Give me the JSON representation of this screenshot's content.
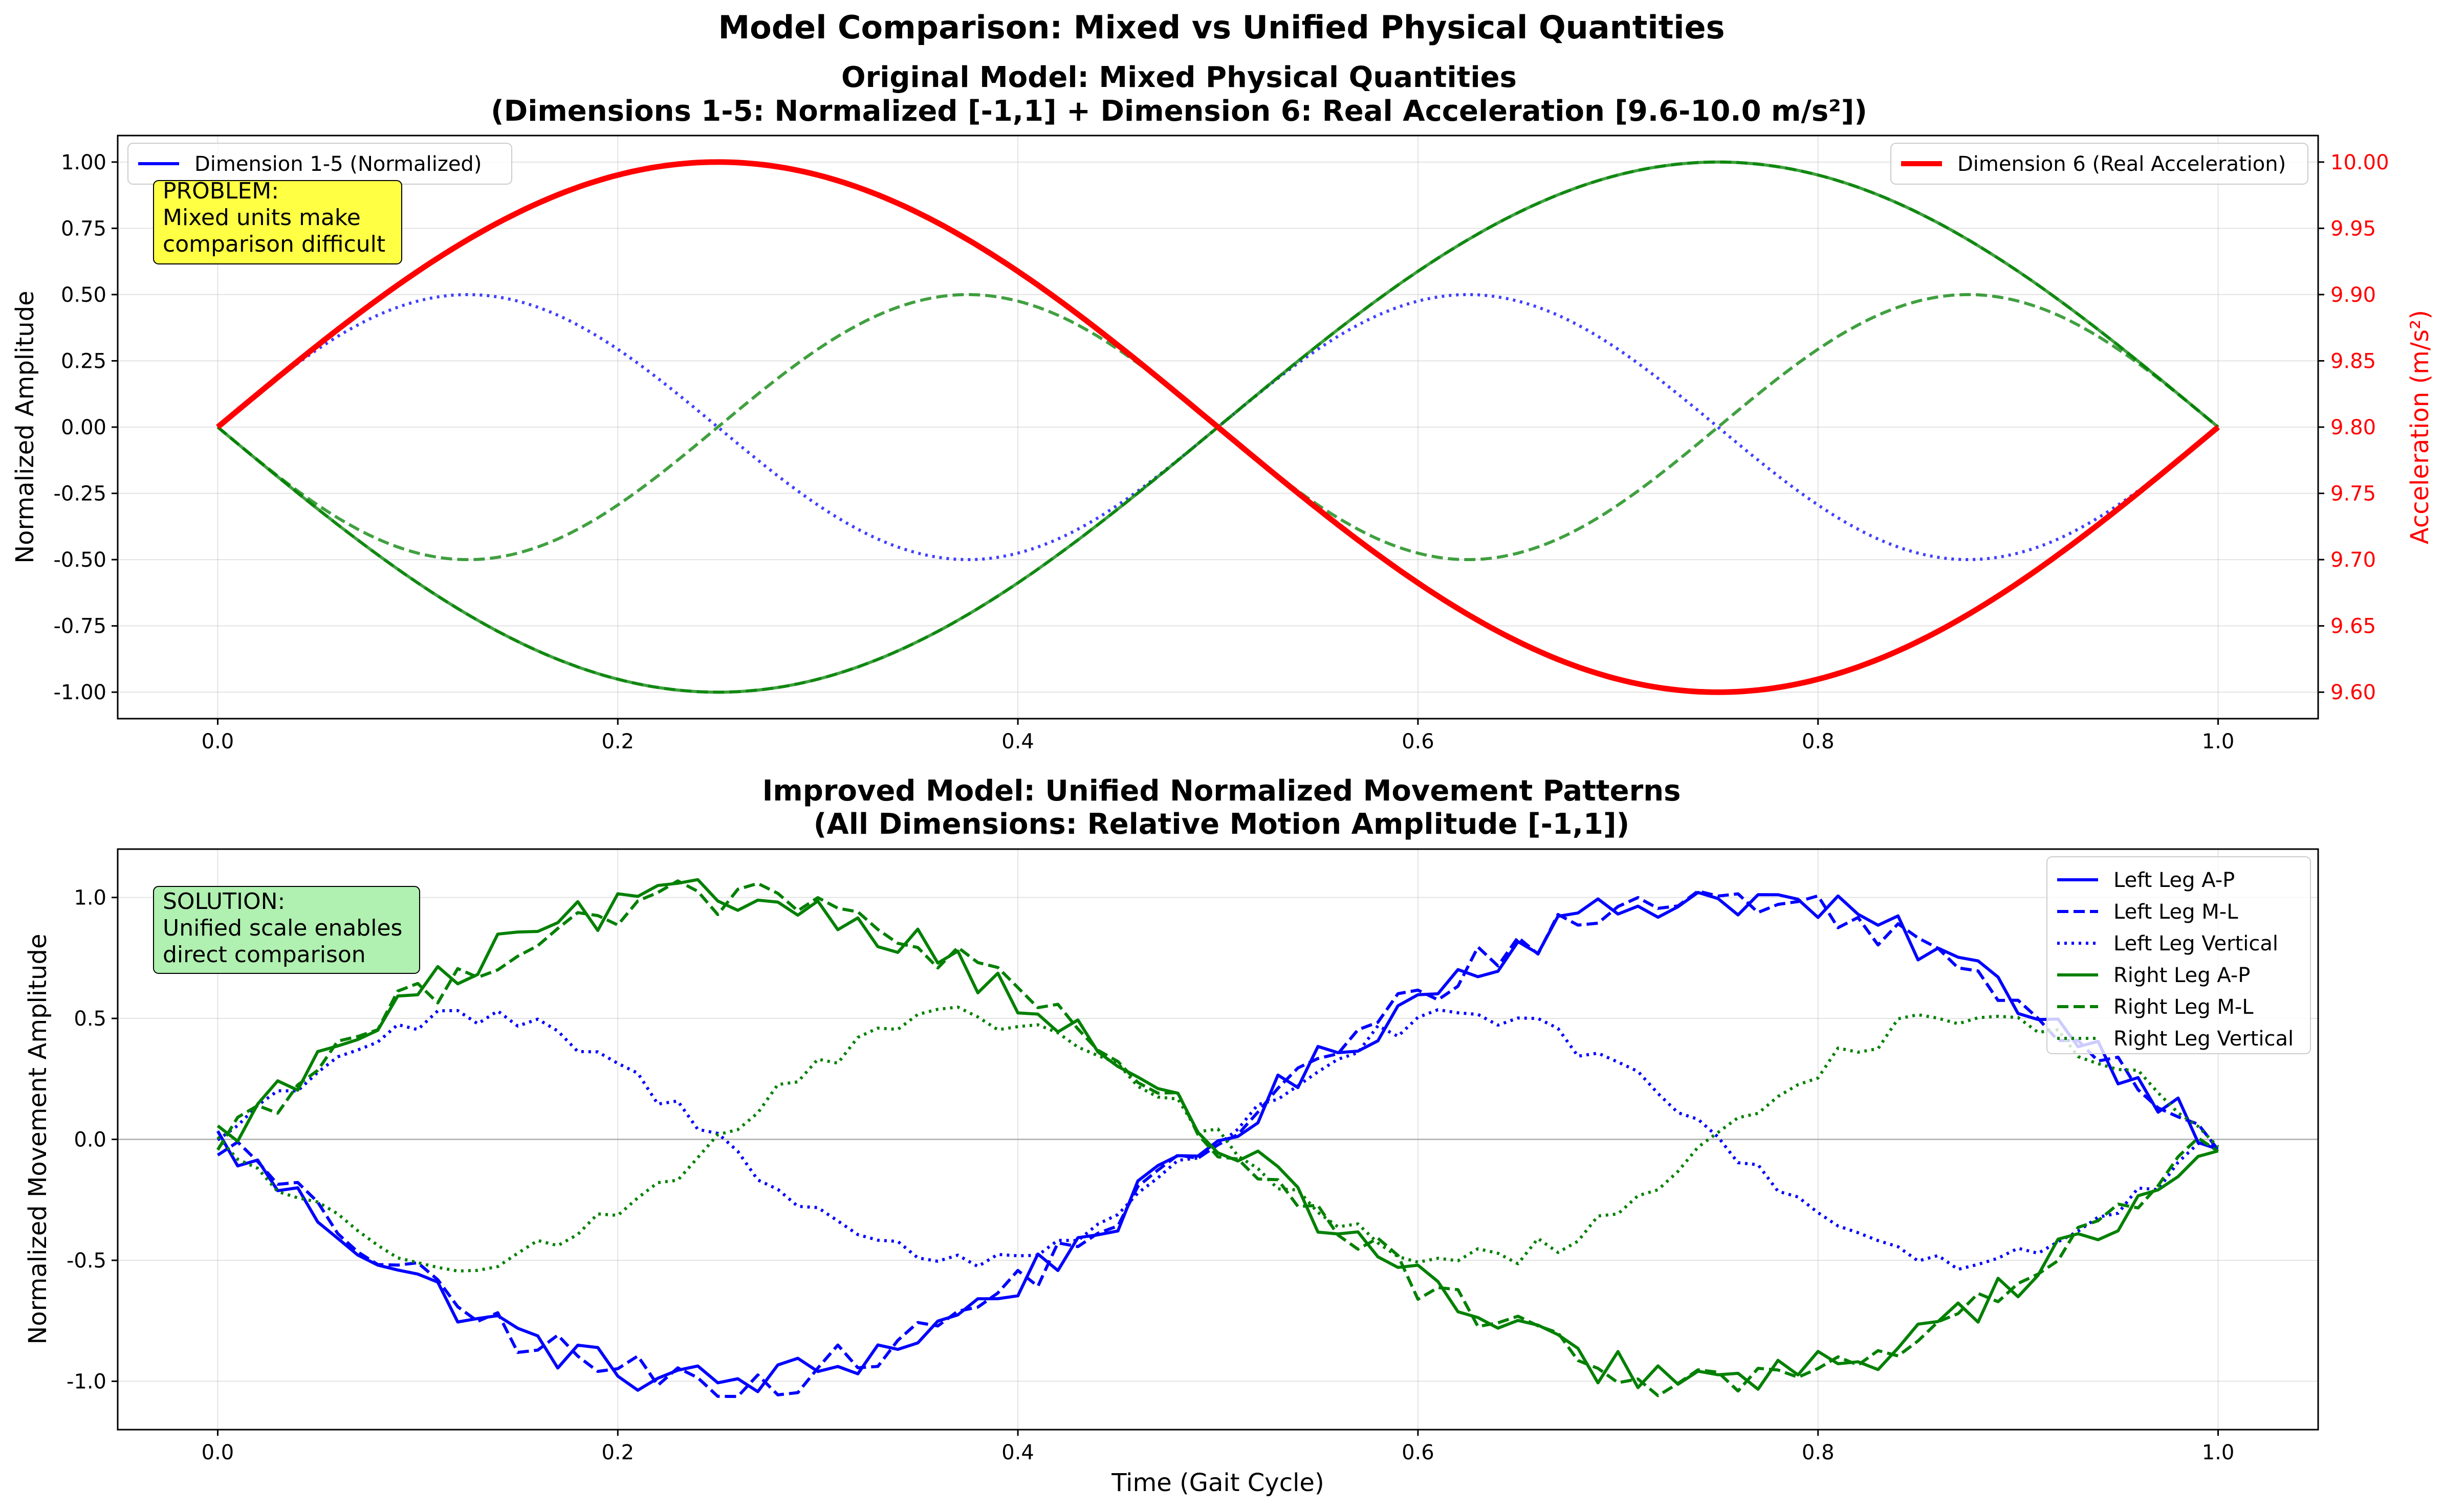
{
  "figure": {
    "suptitle": "Model Comparison: Mixed vs Unified Physical Quantities"
  },
  "chart_data": [
    {
      "type": "line",
      "title": "Original Model: Mixed Physical Quantities",
      "subtitle": "(Dimensions 1-5: Normalized [-1,1] + Dimension 6: Real Acceleration [9.6-10.0 m/s²])",
      "xlabel": "",
      "ylabel": "Normalized Amplitude",
      "y2label": "Acceleration (m/s²)",
      "xlim": [
        -0.05,
        1.05
      ],
      "ylim": [
        -1.1,
        1.1
      ],
      "y2lim": [
        9.58,
        10.02
      ],
      "xticks": [
        "0.0",
        "0.2",
        "0.4",
        "0.6",
        "0.8",
        "1.0"
      ],
      "yticks": [
        "-1.00",
        "-0.75",
        "-0.50",
        "-0.25",
        "0.00",
        "0.25",
        "0.50",
        "0.75",
        "1.00"
      ],
      "y2ticks": [
        "9.60",
        "9.65",
        "9.70",
        "9.75",
        "9.80",
        "9.85",
        "9.90",
        "9.95",
        "10.00"
      ],
      "grid": true,
      "series": [
        {
          "name": "Dimension 1-5 (Normalized)",
          "axis": "left",
          "color": "#0000ff",
          "style": "solid",
          "function": "sin(2*pi*t)",
          "amplitude": 1.0
        },
        {
          "name": "",
          "axis": "left",
          "color": "#0000ff",
          "style": "dotted",
          "function": "sin(4*pi*t)",
          "amplitude": 0.5
        },
        {
          "name": "",
          "axis": "left",
          "color": "#008000",
          "style": "dashed",
          "function": "-sin(2*pi*t)",
          "amplitude": 1.0
        },
        {
          "name": "",
          "axis": "left",
          "color": "#008000",
          "style": "dashed",
          "function": "-sin(4*pi*t)",
          "amplitude": 0.5
        },
        {
          "name": "",
          "axis": "left",
          "color": "#008000",
          "style": "solid",
          "function": "-sin(2*pi*t)",
          "amplitude": 1.0
        },
        {
          "name": "Dimension 6 (Real Acceleration)",
          "axis": "right",
          "color": "#ff0000",
          "style": "solid",
          "function": "9.8 + 0.2*sin(2*pi*t)",
          "amplitude": 0.2
        }
      ],
      "legends": {
        "left": [
          "Dimension 1-5 (Normalized)"
        ],
        "right": [
          "Dimension 6 (Real Acceleration)"
        ]
      },
      "annotation": {
        "lines": [
          "PROBLEM:",
          "Mixed units make",
          "comparison difficult"
        ],
        "color": "#ffff44"
      }
    },
    {
      "type": "line",
      "title": "Improved Model: Unified Normalized Movement Patterns",
      "subtitle": "(All Dimensions: Relative Motion Amplitude [-1,1])",
      "xlabel": "Time (Gait Cycle)",
      "ylabel": "Normalized Movement Amplitude",
      "xlim": [
        -0.05,
        1.05
      ],
      "ylim": [
        -1.2,
        1.2
      ],
      "xticks": [
        "0.0",
        "0.2",
        "0.4",
        "0.6",
        "0.8",
        "1.0"
      ],
      "yticks": [
        "-1.0",
        "-0.5",
        "0.0",
        "0.5",
        "1.0"
      ],
      "grid": true,
      "zero_line": true,
      "series": [
        {
          "name": "Left Leg A-P",
          "color": "#0000ff",
          "style": "solid",
          "function": "-sin(2*pi*t)",
          "amplitude": 1.0,
          "noise": 0.05
        },
        {
          "name": "Left Leg M-L",
          "color": "#0000ff",
          "style": "dashed",
          "function": "-sin(2*pi*t)",
          "amplitude": 1.0,
          "noise": 0.05
        },
        {
          "name": "Left Leg Vertical",
          "color": "#0000ff",
          "style": "dotted",
          "function": "sin(4*pi*t)",
          "amplitude": 0.5,
          "noise": 0.03
        },
        {
          "name": "Right Leg A-P",
          "color": "#008000",
          "style": "solid",
          "function": "sin(2*pi*t)",
          "amplitude": 1.0,
          "noise": 0.05
        },
        {
          "name": "Right Leg M-L",
          "color": "#008000",
          "style": "dashed",
          "function": "sin(2*pi*t)",
          "amplitude": 1.0,
          "noise": 0.05
        },
        {
          "name": "Right Leg Vertical",
          "color": "#008000",
          "style": "dotted",
          "function": "-sin(4*pi*t)",
          "amplitude": 0.5,
          "noise": 0.03
        }
      ],
      "annotation": {
        "lines": [
          "SOLUTION:",
          "Unified scale enables",
          "direct comparison"
        ],
        "color": "#b0f0b0"
      }
    }
  ]
}
